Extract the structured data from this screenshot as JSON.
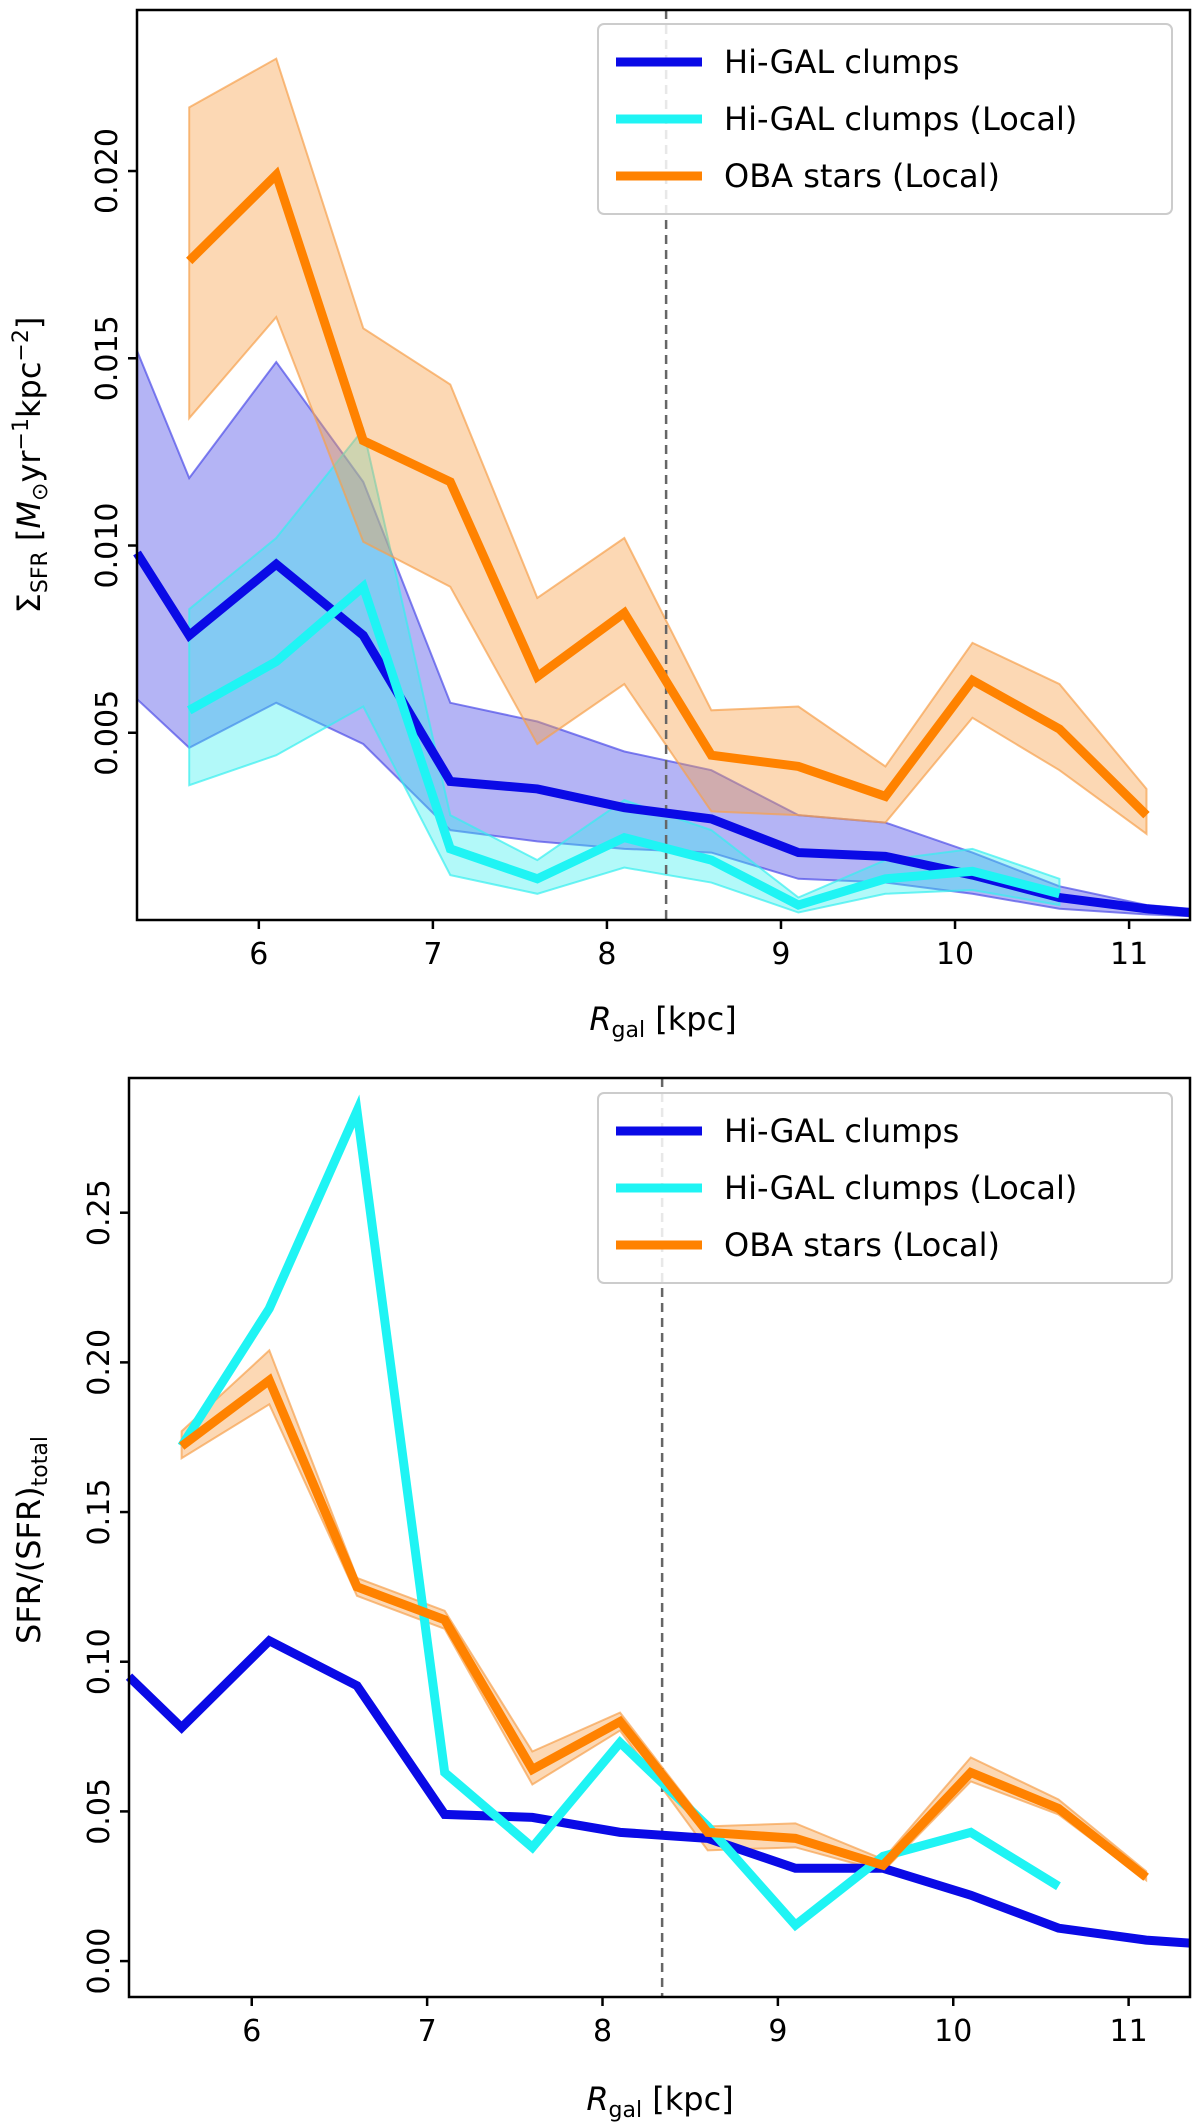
{
  "chart_data": [
    {
      "type": "line",
      "id": "top",
      "ylabel": "ΣSFR [M⊙yr⁻¹kpc⁻²]",
      "ylabel_parts": {
        "sym": "Σ",
        "sub": "SFR",
        "unit_open": " [",
        "m": "M",
        "sun": "⊙",
        "yr": "yr",
        "yr_exp": "−1",
        "kpc": "kpc",
        "kpc_exp": "−2",
        "close": "]"
      },
      "xlabel": "Rgal [kpc]",
      "xlabel_parts": {
        "r": "R",
        "sub": "gal",
        "unit": " [kpc]"
      },
      "xlim": [
        5.3,
        11.35
      ],
      "ylim": [
        0.0,
        0.0243
      ],
      "xticks": [
        6,
        7,
        8,
        9,
        10,
        11
      ],
      "xtick_labels": [
        "6",
        "7",
        "8",
        "9",
        "10",
        "11"
      ],
      "yticks": [
        0.005,
        0.01,
        0.015,
        0.02
      ],
      "ytick_labels": [
        "0.005",
        "0.010",
        "0.015",
        "0.020"
      ],
      "vline_x": 8.34,
      "legend": [
        "Hi-GAL clumps",
        "Hi-GAL clumps (Local)",
        "OBA stars (Local)"
      ],
      "legend_position": "top-right",
      "series": [
        {
          "name": "Hi-GAL clumps",
          "color": "#0a0ae6",
          "band_color": "#4d4de8",
          "band_opacity": 0.42,
          "x": [
            5.3,
            5.6,
            6.1,
            6.6,
            7.1,
            7.6,
            8.1,
            8.6,
            9.1,
            9.6,
            10.1,
            10.6,
            11.1,
            11.35
          ],
          "y": [
            0.0098,
            0.0076,
            0.0095,
            0.0076,
            0.0037,
            0.0035,
            0.003,
            0.0027,
            0.0018,
            0.0017,
            0.0012,
            0.0006,
            0.0003,
            0.0002
          ],
          "lo": [
            0.0059,
            0.0046,
            0.0058,
            0.0047,
            0.0024,
            0.0021,
            0.0019,
            0.0018,
            0.0011,
            0.001,
            0.0007,
            0.0003,
            0.00015,
            0.0001
          ],
          "hi": [
            0.0152,
            0.0118,
            0.0149,
            0.0117,
            0.0058,
            0.0053,
            0.0045,
            0.004,
            0.0028,
            0.0026,
            0.0018,
            0.0009,
            0.0004,
            0.0003
          ]
        },
        {
          "name": "Hi-GAL clumps (Local)",
          "color": "#1ff4f4",
          "band_color": "#34f0f0",
          "band_opacity": 0.38,
          "x": [
            5.6,
            6.1,
            6.6,
            7.1,
            7.6,
            8.1,
            8.6,
            9.1,
            9.6,
            10.1,
            10.6
          ],
          "y": [
            0.0056,
            0.0069,
            0.0089,
            0.0019,
            0.0011,
            0.0022,
            0.0016,
            0.0004,
            0.0011,
            0.0013,
            0.0007
          ],
          "lo": [
            0.0036,
            0.0044,
            0.0057,
            0.0012,
            0.0007,
            0.0014,
            0.001,
            0.0002,
            0.0007,
            0.0008,
            0.0004
          ],
          "hi": [
            0.0083,
            0.0102,
            0.0131,
            0.0028,
            0.0016,
            0.0032,
            0.0024,
            0.0006,
            0.0016,
            0.0019,
            0.0011
          ]
        },
        {
          "name": "OBA stars (Local)",
          "color": "#ff8200",
          "band_color": "#f7a14d",
          "band_opacity": 0.42,
          "x": [
            5.6,
            6.1,
            6.6,
            7.1,
            7.6,
            8.1,
            8.6,
            9.1,
            9.6,
            10.1,
            10.6,
            11.1
          ],
          "y": [
            0.0176,
            0.0199,
            0.0128,
            0.0117,
            0.0065,
            0.0082,
            0.0044,
            0.0041,
            0.0033,
            0.0064,
            0.0051,
            0.0028
          ],
          "lo": [
            0.0134,
            0.0161,
            0.0101,
            0.0089,
            0.0047,
            0.0063,
            0.0029,
            0.0028,
            0.0026,
            0.0054,
            0.004,
            0.0023
          ],
          "hi": [
            0.0217,
            0.023,
            0.0158,
            0.0143,
            0.0086,
            0.0102,
            0.0056,
            0.0057,
            0.0041,
            0.0074,
            0.0063,
            0.0035
          ]
        }
      ]
    },
    {
      "type": "line",
      "id": "bottom",
      "ylabel": "SFR/(SFR)total",
      "ylabel_parts": {
        "main": "SFR/(SFR)",
        "sub": "total"
      },
      "xlabel": "Rgal [kpc]",
      "xlabel_parts": {
        "r": "R",
        "sub": "gal",
        "unit": " [kpc]"
      },
      "xlim": [
        5.3,
        11.35
      ],
      "ylim": [
        -0.012,
        0.295
      ],
      "xticks": [
        6,
        7,
        8,
        9,
        10,
        11
      ],
      "xtick_labels": [
        "6",
        "7",
        "8",
        "9",
        "10",
        "11"
      ],
      "yticks": [
        0.0,
        0.05,
        0.1,
        0.15,
        0.2,
        0.25
      ],
      "ytick_labels": [
        "0.00",
        "0.05",
        "0.10",
        "0.15",
        "0.20",
        "0.25"
      ],
      "vline_x": 8.34,
      "legend": [
        "Hi-GAL clumps",
        "Hi-GAL clumps (Local)",
        "OBA stars (Local)"
      ],
      "legend_position": "top-right",
      "series": [
        {
          "name": "Hi-GAL clumps",
          "color": "#0a0ae6",
          "x": [
            5.3,
            5.6,
            6.1,
            6.6,
            7.1,
            7.6,
            8.1,
            8.6,
            9.1,
            9.6,
            10.1,
            10.6,
            11.1,
            11.35
          ],
          "y": [
            0.095,
            0.078,
            0.107,
            0.092,
            0.049,
            0.048,
            0.043,
            0.041,
            0.031,
            0.031,
            0.022,
            0.011,
            0.007,
            0.006
          ]
        },
        {
          "name": "Hi-GAL clumps (Local)",
          "color": "#1ff4f4",
          "x": [
            5.6,
            6.1,
            6.6,
            7.1,
            7.6,
            8.1,
            8.6,
            9.1,
            9.6,
            10.1,
            10.6
          ],
          "y": [
            0.172,
            0.218,
            0.284,
            0.063,
            0.038,
            0.073,
            0.045,
            0.012,
            0.035,
            0.043,
            0.025
          ]
        },
        {
          "name": "OBA stars (Local)",
          "color": "#ff8200",
          "band_color": "#f7a14d",
          "band_opacity": 0.42,
          "x": [
            5.6,
            6.1,
            6.6,
            7.1,
            7.6,
            8.1,
            8.6,
            9.1,
            9.6,
            10.1,
            10.6,
            11.1
          ],
          "y": [
            0.172,
            0.194,
            0.125,
            0.114,
            0.064,
            0.08,
            0.043,
            0.041,
            0.032,
            0.063,
            0.051,
            0.028
          ],
          "lo": [
            0.168,
            0.186,
            0.122,
            0.111,
            0.059,
            0.077,
            0.037,
            0.038,
            0.03,
            0.06,
            0.049,
            0.027
          ],
          "hi": [
            0.177,
            0.204,
            0.128,
            0.117,
            0.07,
            0.083,
            0.045,
            0.046,
            0.034,
            0.068,
            0.054,
            0.03
          ]
        }
      ]
    }
  ]
}
